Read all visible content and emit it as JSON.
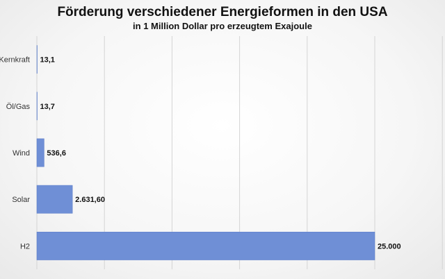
{
  "chart_data": {
    "type": "bar",
    "orientation": "horizontal",
    "title": "Förderung verschiedener Energieformen in den USA",
    "subtitle": "in 1 Million Dollar pro erzeugtem Exajoule",
    "categories": [
      "Kernkraft",
      "Öl/Gas",
      "Wind",
      "Solar",
      "H2"
    ],
    "values": [
      13.1,
      13.7,
      536.6,
      2631.6,
      25000
    ],
    "data_labels": [
      "13,1",
      "13,7",
      "536,6",
      "2.631,60",
      "25.000"
    ],
    "xlim": [
      0,
      30000
    ],
    "grid": true,
    "bar_color": "#6f8fd6"
  }
}
